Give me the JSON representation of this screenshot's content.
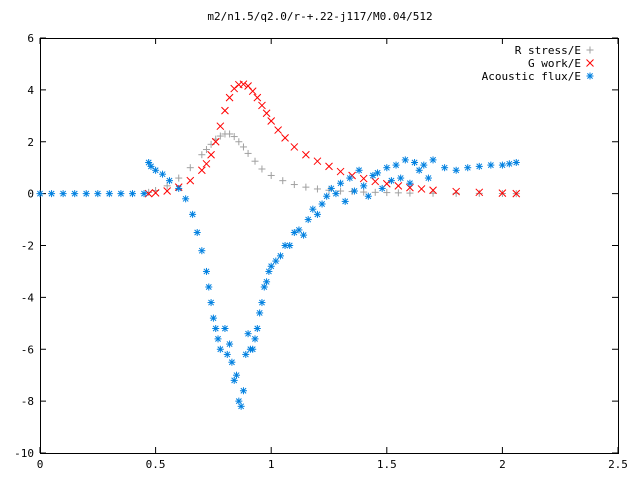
{
  "chart_data": {
    "type": "scatter",
    "title": "m2/n1.5/q2.0/r-+.22-j117/M0.04/512",
    "xlabel": "",
    "ylabel": "",
    "xlim": [
      0,
      2.5
    ],
    "ylim": [
      -10,
      6
    ],
    "xticks": [
      0,
      0.5,
      1,
      1.5,
      2,
      2.5
    ],
    "xtick_labels": [
      "0",
      "0.5",
      "1",
      "1.5",
      "2",
      "2.5"
    ],
    "yticks": [
      -10,
      -8,
      -6,
      -4,
      -2,
      0,
      2,
      4,
      6
    ],
    "ytick_labels": [
      "-10",
      "-8",
      "-6",
      "-4",
      "-2",
      "0",
      "2",
      "4",
      "6"
    ],
    "grid": false,
    "legend_position": "top-right",
    "series": [
      {
        "name": "R stress/E",
        "marker": "+",
        "color": "#a0a0a0",
        "x": [
          0.47,
          0.5,
          0.55,
          0.6,
          0.65,
          0.7,
          0.72,
          0.74,
          0.76,
          0.78,
          0.8,
          0.82,
          0.84,
          0.86,
          0.88,
          0.9,
          0.93,
          0.96,
          1.0,
          1.05,
          1.1,
          1.15,
          1.2,
          1.25,
          1.3,
          1.35,
          1.4,
          1.45,
          1.5,
          1.55,
          1.6,
          1.7,
          1.8,
          1.9,
          2.0,
          2.06
        ],
        "y": [
          0.05,
          0.12,
          0.3,
          0.6,
          1.0,
          1.5,
          1.7,
          1.9,
          2.1,
          2.22,
          2.3,
          2.3,
          2.2,
          2.0,
          1.8,
          1.55,
          1.25,
          0.95,
          0.7,
          0.5,
          0.35,
          0.25,
          0.18,
          0.13,
          0.1,
          0.08,
          0.06,
          0.05,
          0.04,
          0.03,
          0.02,
          0.015,
          0.01,
          0.01,
          0.005,
          0.0
        ]
      },
      {
        "name": "G work/E",
        "marker": "x",
        "color": "#ff0000",
        "x": [
          0.47,
          0.5,
          0.55,
          0.6,
          0.65,
          0.7,
          0.72,
          0.74,
          0.76,
          0.78,
          0.8,
          0.82,
          0.84,
          0.86,
          0.88,
          0.9,
          0.92,
          0.94,
          0.96,
          0.98,
          1.0,
          1.03,
          1.06,
          1.1,
          1.15,
          1.2,
          1.25,
          1.3,
          1.35,
          1.4,
          1.45,
          1.5,
          1.55,
          1.6,
          1.65,
          1.7,
          1.8,
          1.9,
          2.0,
          2.06
        ],
        "y": [
          0.0,
          0.03,
          0.1,
          0.25,
          0.5,
          0.9,
          1.15,
          1.5,
          2.0,
          2.6,
          3.2,
          3.7,
          4.05,
          4.2,
          4.22,
          4.15,
          3.95,
          3.7,
          3.4,
          3.1,
          2.8,
          2.45,
          2.15,
          1.8,
          1.5,
          1.25,
          1.05,
          0.85,
          0.7,
          0.58,
          0.47,
          0.38,
          0.3,
          0.23,
          0.18,
          0.13,
          0.08,
          0.05,
          0.02,
          0.0
        ]
      },
      {
        "name": "Acoustic flux/E",
        "marker": "*",
        "color": "#0080e0",
        "x": [
          0.0,
          0.05,
          0.1,
          0.15,
          0.2,
          0.25,
          0.3,
          0.35,
          0.4,
          0.45,
          0.47,
          0.48,
          0.5,
          0.53,
          0.56,
          0.6,
          0.63,
          0.66,
          0.68,
          0.7,
          0.72,
          0.73,
          0.74,
          0.75,
          0.76,
          0.77,
          0.78,
          0.8,
          0.81,
          0.82,
          0.83,
          0.84,
          0.85,
          0.86,
          0.87,
          0.88,
          0.89,
          0.9,
          0.91,
          0.92,
          0.93,
          0.94,
          0.95,
          0.96,
          0.97,
          0.98,
          0.99,
          1.0,
          1.02,
          1.04,
          1.06,
          1.08,
          1.1,
          1.12,
          1.14,
          1.16,
          1.18,
          1.2,
          1.22,
          1.24,
          1.26,
          1.28,
          1.3,
          1.32,
          1.34,
          1.36,
          1.38,
          1.4,
          1.42,
          1.44,
          1.46,
          1.48,
          1.5,
          1.52,
          1.54,
          1.56,
          1.58,
          1.6,
          1.62,
          1.64,
          1.66,
          1.68,
          1.7,
          1.75,
          1.8,
          1.85,
          1.9,
          1.95,
          2.0,
          2.03,
          2.06
        ],
        "y": [
          0.0,
          0.0,
          0.0,
          0.0,
          0.0,
          0.0,
          0.0,
          0.0,
          0.0,
          0.0,
          1.2,
          1.05,
          0.9,
          0.75,
          0.5,
          0.2,
          -0.2,
          -0.8,
          -1.5,
          -2.2,
          -3.0,
          -3.6,
          -4.2,
          -4.8,
          -5.2,
          -5.6,
          -6.0,
          -5.2,
          -6.2,
          -5.8,
          -6.5,
          -7.2,
          -7.0,
          -8.0,
          -8.2,
          -7.6,
          -6.2,
          -5.4,
          -6.0,
          -6.0,
          -5.6,
          -5.2,
          -4.6,
          -4.2,
          -3.6,
          -3.4,
          -3.0,
          -2.8,
          -2.6,
          -2.4,
          -2.0,
          -2.0,
          -1.5,
          -1.4,
          -1.6,
          -1.0,
          -0.6,
          -0.8,
          -0.4,
          -0.1,
          0.2,
          0.0,
          0.4,
          -0.3,
          0.6,
          0.1,
          0.9,
          0.3,
          -0.1,
          0.7,
          0.8,
          0.2,
          1.0,
          0.5,
          1.1,
          0.6,
          1.3,
          0.4,
          1.2,
          0.9,
          1.1,
          0.6,
          1.3,
          1.0,
          0.9,
          1.0,
          1.05,
          1.1,
          1.1,
          1.15,
          1.2
        ]
      }
    ]
  }
}
